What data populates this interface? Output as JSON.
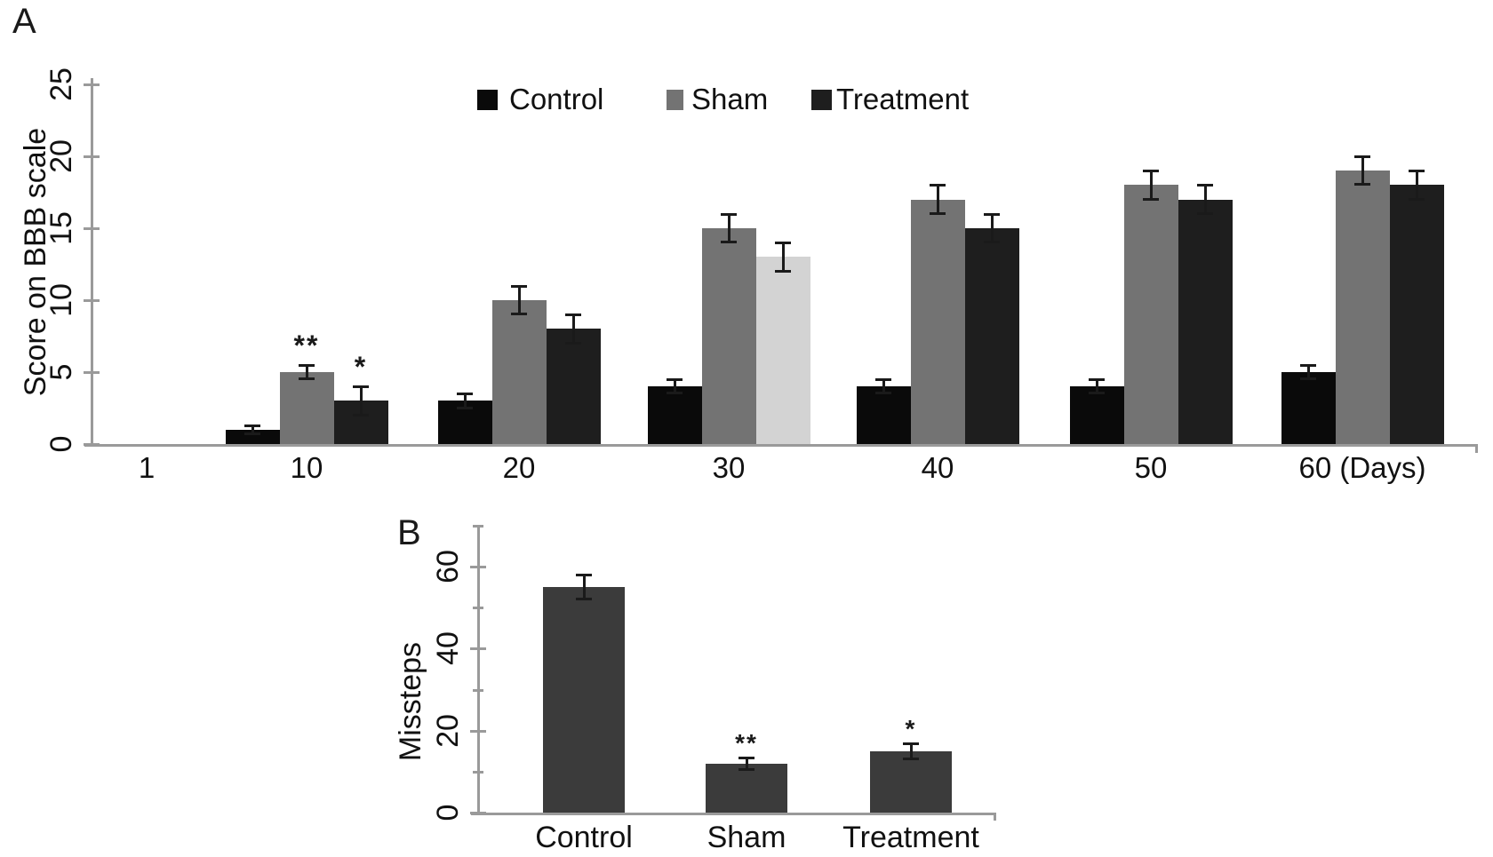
{
  "figure_colors": {
    "axis": "#9a9a9a",
    "error_bar": "#1a1a1a",
    "text": "#151515",
    "background": "#ffffff"
  },
  "chart_data": [
    {
      "type": "bar",
      "panel_label": "A",
      "ylabel": "Score on BBB scale",
      "xlabel": "",
      "categories": [
        "1",
        "10",
        "20",
        "30",
        "40",
        "50",
        "60 (Days)"
      ],
      "ylim": [
        0,
        25
      ],
      "yticks": [
        "0",
        "5",
        "10",
        "15",
        "20",
        "25"
      ],
      "grid": false,
      "legend_position": "top-center",
      "series": [
        {
          "name": "Control",
          "color": "#0a0a0a",
          "values": [
            0,
            1,
            3,
            4,
            4,
            4,
            5
          ],
          "errors": [
            0,
            0.3,
            0.5,
            0.5,
            0.5,
            0.5,
            0.5
          ]
        },
        {
          "name": "Sham",
          "color": "#737373",
          "values": [
            0,
            5,
            10,
            15,
            17,
            18,
            19
          ],
          "errors": [
            0,
            0.5,
            1,
            1,
            1,
            1,
            1
          ]
        },
        {
          "name": "Treatment",
          "color": "#1e1e1e",
          "values": [
            0,
            3,
            8,
            13,
            15,
            17,
            18
          ],
          "errors": [
            0,
            1,
            1,
            1,
            1,
            1,
            1
          ],
          "bar_color_overrides": {
            "3": "#d3d3d3"
          }
        }
      ],
      "annotations": [
        {
          "text": "**",
          "category_index": 1,
          "series_index": 1
        },
        {
          "text": "*",
          "category_index": 1,
          "series_index": 2
        }
      ]
    },
    {
      "type": "bar",
      "panel_label": "B",
      "ylabel": "Missteps",
      "xlabel": "",
      "categories": [
        "Control",
        "Sham",
        "Treatment"
      ],
      "values": [
        55,
        12,
        15
      ],
      "errors": [
        3,
        1.5,
        2
      ],
      "bar_color": "#3b3b3b",
      "ylim": [
        0,
        70
      ],
      "ytick_minor_step": 10,
      "yticks_labeled": [
        "0",
        "20",
        "40",
        "60"
      ],
      "grid": false,
      "annotations": [
        {
          "text": "**",
          "category_index": 1
        },
        {
          "text": "*",
          "category_index": 2
        }
      ]
    }
  ]
}
